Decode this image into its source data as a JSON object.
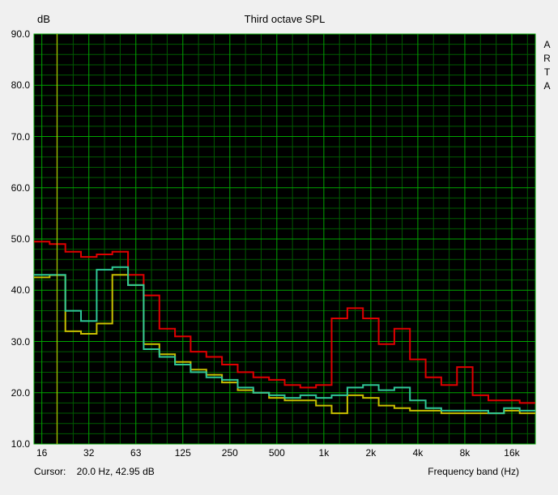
{
  "panel": {
    "background": "#f0f0f0"
  },
  "header": {
    "y_unit_label": "dB",
    "title": "Third octave SPL"
  },
  "watermark": {
    "text": "ARTA"
  },
  "footer": {
    "cursor_readout": "Cursor:    20.0 Hz, 42.95 dB",
    "x_axis_title": "Frequency band (Hz)"
  },
  "chart_data": {
    "type": "line",
    "subtype": "third-octave-band-step",
    "title": "Third octave SPL",
    "ylabel": "dB",
    "xlabel": "Frequency band (Hz)",
    "ylim": [
      10,
      90
    ],
    "y_tick_labels": [
      "90.0",
      "80.0",
      "70.0",
      "60.0",
      "50.0",
      "40.0",
      "30.0",
      "20.0",
      "10.0"
    ],
    "x_ticks": [
      {
        "label": "16",
        "band_index": 0
      },
      {
        "label": "32",
        "band_index": 3
      },
      {
        "label": "63",
        "band_index": 6
      },
      {
        "label": "125",
        "band_index": 9
      },
      {
        "label": "250",
        "band_index": 12
      },
      {
        "label": "500",
        "band_index": 15
      },
      {
        "label": "1k",
        "band_index": 18
      },
      {
        "label": "2k",
        "band_index": 21
      },
      {
        "label": "4k",
        "band_index": 24
      },
      {
        "label": "8k",
        "band_index": 27
      },
      {
        "label": "16k",
        "band_index": 30
      }
    ],
    "bands": [
      16,
      20,
      25,
      31.5,
      40,
      50,
      63,
      80,
      100,
      125,
      160,
      200,
      250,
      315,
      400,
      500,
      630,
      800,
      1000,
      1250,
      1600,
      2000,
      2500,
      3150,
      4000,
      5000,
      6300,
      8000,
      10000,
      12500,
      16000,
      20000
    ],
    "series": [
      {
        "name": "series-red",
        "color": "#e00000",
        "values": [
          49.5,
          49.0,
          47.5,
          46.5,
          47.0,
          47.5,
          43.0,
          39.0,
          32.5,
          31.0,
          28.0,
          27.0,
          25.5,
          24.0,
          23.0,
          22.5,
          21.5,
          21.0,
          21.5,
          34.5,
          36.5,
          34.5,
          29.5,
          32.5,
          26.5,
          23.0,
          21.5,
          25.0,
          19.5,
          18.5,
          18.5,
          18.0
        ]
      },
      {
        "name": "series-yellow",
        "color": "#c8c000",
        "values": [
          42.5,
          42.95,
          32.0,
          31.5,
          33.5,
          43.0,
          41.0,
          29.5,
          27.5,
          26.0,
          24.5,
          23.5,
          22.0,
          20.5,
          20.0,
          19.0,
          18.5,
          18.5,
          17.5,
          16.0,
          19.5,
          19.0,
          17.5,
          17.0,
          16.5,
          16.5,
          16.0,
          16.0,
          16.0,
          16.0,
          16.5,
          16.0
        ]
      },
      {
        "name": "series-green",
        "color": "#2fc896",
        "values": [
          43.0,
          43.0,
          36.0,
          34.0,
          44.0,
          44.5,
          41.0,
          28.5,
          27.0,
          25.5,
          24.0,
          23.0,
          22.5,
          21.0,
          20.0,
          19.5,
          19.0,
          19.5,
          19.0,
          19.5,
          21.0,
          21.5,
          20.5,
          21.0,
          18.5,
          17.0,
          16.5,
          16.5,
          16.5,
          16.0,
          17.0,
          16.5
        ]
      }
    ],
    "cursor": {
      "freq_hz": 20.0,
      "level_db": 42.95,
      "color": "#d4cc00"
    },
    "grid": {
      "bg": "#000000",
      "major_color": "#00a400",
      "minor_color": "#005a00",
      "y_minor_step": 2,
      "y_major_step": 10
    },
    "legend_position": "none"
  }
}
